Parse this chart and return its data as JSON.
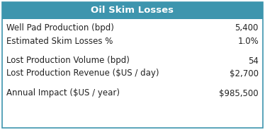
{
  "title": "Oil Skim Losses",
  "title_bg_color": "#3d95ae",
  "title_text_color": "#ffffff",
  "border_color": "#3d95ae",
  "rows": [
    {
      "label": "Well Pad Production (bpd)",
      "value": "5,400",
      "gap_before": false
    },
    {
      "label": "Estimated Skim Losses %",
      "value": "1.0%",
      "gap_before": false
    },
    {
      "label": "Lost Production Volume (bpd)",
      "value": "54",
      "gap_before": true
    },
    {
      "label": "Lost Production Revenue ($US / day)",
      "value": "$2,700",
      "gap_before": false
    },
    {
      "label": "Annual Impact ($US / year)",
      "value": "$985,500",
      "gap_before": true
    }
  ],
  "label_fontsize": 8.5,
  "value_fontsize": 8.5,
  "title_fontsize": 9.5,
  "bg_color": "#ffffff",
  "text_color": "#222222",
  "fig_width": 3.74,
  "fig_height": 1.84,
  "dpi": 100
}
